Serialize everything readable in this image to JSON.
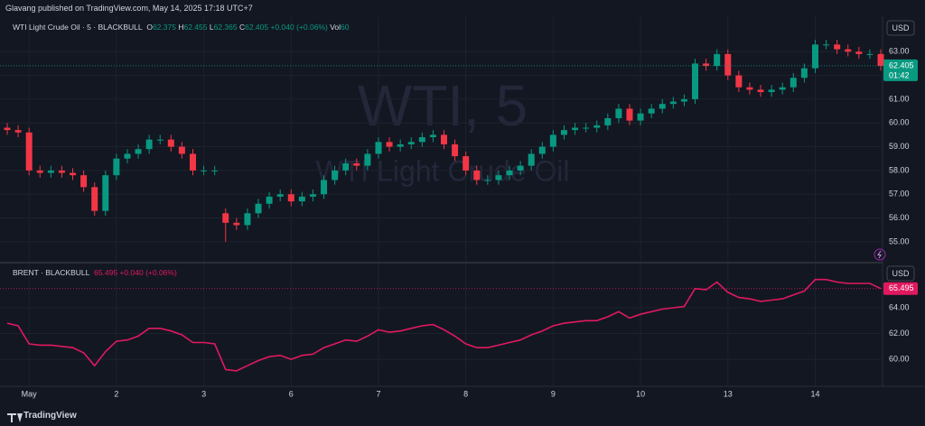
{
  "header": {
    "published": "Glavang published on TradingView.com, May 14, 2025 17:18 UTC+7"
  },
  "footer": {
    "brand": "TradingView"
  },
  "chart_data": [
    {
      "type": "candlestick",
      "symbol": "WTI Light Crude Oil · 5 · BLACKBULL",
      "legend": {
        "o_label": "O",
        "open": 62.375,
        "h_label": "H",
        "high": 62.455,
        "l_label": "L",
        "low": 62.365,
        "c_label": "C",
        "close": 62.405,
        "change": "+0.040 (+0.06%)",
        "vol_label": "Vol",
        "volume": 60
      },
      "watermark": {
        "line1": "WTI, 5",
        "line2": "WTI Light Crude Oil"
      },
      "currency": "USD",
      "last_price": 62.405,
      "countdown": "01:42",
      "up_color": "#089981",
      "down_color": "#f23645",
      "xlim": [
        0,
        80
      ],
      "ylim": [
        54.16,
        64.49
      ],
      "yticks": [
        {
          "value": 55,
          "label": "55.00"
        },
        {
          "value": 56,
          "label": "56.00"
        },
        {
          "value": 57,
          "label": "57.00"
        },
        {
          "value": 58,
          "label": "58.00"
        },
        {
          "value": 59,
          "label": "59.00"
        },
        {
          "value": 60,
          "label": "60.00"
        },
        {
          "value": 61,
          "label": "61.00"
        },
        {
          "value": 62,
          "label": "62.00"
        },
        {
          "value": 63,
          "label": "63.00"
        }
      ],
      "grid": true,
      "open": [
        59.8,
        59.7,
        59.6,
        58.0,
        57.9,
        58.0,
        57.9,
        57.8,
        57.3,
        56.3,
        57.8,
        58.5,
        58.7,
        58.9,
        59.3,
        59.3,
        59.0,
        58.7,
        58.0,
        58.0,
        56.2,
        55.8,
        55.7,
        56.2,
        56.6,
        56.9,
        57.0,
        56.7,
        56.9,
        57.0,
        57.6,
        58.0,
        58.3,
        58.2,
        58.7,
        59.2,
        59.0,
        59.1,
        59.2,
        59.4,
        59.5,
        59.1,
        58.6,
        58.0,
        57.6,
        57.6,
        57.8,
        58.0,
        58.2,
        58.7,
        59.0,
        59.5,
        59.7,
        59.8,
        59.8,
        59.9,
        60.2,
        60.6,
        60.1,
        60.4,
        60.6,
        60.8,
        60.9,
        61.0,
        62.5,
        62.4,
        62.9,
        62.0,
        61.5,
        61.4,
        61.3,
        61.4,
        61.5,
        61.9,
        62.3,
        63.3,
        63.3,
        63.1,
        63.0,
        62.9,
        62.9
      ],
      "high": [
        60.0,
        59.9,
        59.8,
        58.2,
        58.2,
        58.2,
        58.1,
        58.0,
        57.5,
        58.0,
        58.7,
        58.9,
        59.1,
        59.5,
        59.5,
        59.5,
        59.2,
        58.9,
        58.2,
        58.2,
        56.4,
        56.0,
        56.4,
        56.8,
        57.1,
        57.2,
        57.2,
        57.1,
        57.2,
        57.8,
        58.2,
        58.5,
        58.5,
        58.9,
        59.4,
        59.4,
        59.3,
        59.4,
        59.6,
        59.7,
        59.7,
        59.3,
        58.8,
        58.2,
        57.8,
        58.0,
        58.2,
        58.4,
        58.9,
        59.2,
        59.7,
        59.9,
        60.0,
        60.0,
        60.1,
        60.4,
        60.8,
        60.8,
        60.6,
        60.8,
        61.0,
        61.1,
        61.2,
        62.7,
        62.7,
        63.1,
        63.1,
        62.2,
        61.7,
        61.6,
        61.6,
        61.7,
        62.1,
        62.5,
        63.5,
        63.5,
        63.5,
        63.3,
        63.2,
        63.1,
        63.1
      ],
      "low": [
        59.5,
        59.4,
        57.8,
        57.7,
        57.7,
        57.7,
        57.6,
        57.1,
        56.1,
        56.1,
        57.6,
        58.3,
        58.5,
        58.7,
        59.1,
        58.8,
        58.5,
        57.8,
        57.8,
        57.8,
        55.0,
        55.5,
        55.5,
        56.0,
        56.4,
        56.7,
        56.5,
        56.5,
        56.7,
        56.8,
        57.4,
        57.8,
        58.0,
        58.0,
        58.5,
        58.8,
        58.8,
        58.9,
        59.0,
        59.2,
        58.9,
        58.4,
        57.8,
        57.4,
        57.4,
        57.4,
        57.6,
        57.8,
        58.0,
        58.5,
        58.8,
        59.3,
        59.5,
        59.6,
        59.6,
        59.7,
        60.0,
        59.9,
        59.9,
        60.2,
        60.4,
        60.6,
        60.7,
        60.8,
        62.2,
        62.2,
        61.8,
        61.3,
        61.2,
        61.1,
        61.1,
        61.2,
        61.3,
        61.7,
        62.1,
        63.1,
        62.9,
        62.8,
        62.7,
        62.7,
        62.2
      ],
      "close": [
        59.7,
        59.6,
        58.0,
        57.9,
        58.0,
        57.9,
        57.8,
        57.3,
        56.3,
        57.8,
        58.5,
        58.7,
        58.9,
        59.3,
        59.3,
        59.0,
        58.7,
        58.0,
        58.0,
        58.0,
        55.8,
        55.7,
        56.2,
        56.6,
        56.9,
        57.0,
        56.7,
        56.9,
        57.0,
        57.6,
        58.0,
        58.3,
        58.2,
        58.7,
        59.2,
        59.0,
        59.1,
        59.2,
        59.4,
        59.5,
        59.1,
        58.6,
        58.0,
        57.6,
        57.6,
        57.8,
        58.0,
        58.2,
        58.7,
        59.0,
        59.5,
        59.7,
        59.8,
        59.8,
        59.9,
        60.2,
        60.6,
        60.1,
        60.4,
        60.6,
        60.8,
        60.9,
        61.0,
        62.5,
        62.4,
        62.9,
        62.0,
        61.5,
        61.4,
        61.3,
        61.4,
        61.5,
        61.9,
        62.3,
        63.3,
        63.3,
        63.1,
        63.0,
        62.9,
        62.9,
        62.4
      ]
    },
    {
      "type": "line",
      "symbol": "BRENT · BLACKBULL",
      "legend": {
        "last": 65.495,
        "change": "+0.040 (+0.06%)"
      },
      "currency": "USD",
      "last_price": 65.495,
      "color": "#e0195f",
      "xlim": [
        0,
        80
      ],
      "xticks": [
        {
          "value": 2,
          "label": "May"
        },
        {
          "value": 10,
          "label": "2"
        },
        {
          "value": 18,
          "label": "3"
        },
        {
          "value": 26,
          "label": "6"
        },
        {
          "value": 34,
          "label": "7"
        },
        {
          "value": 42,
          "label": "8"
        },
        {
          "value": 50,
          "label": "9"
        },
        {
          "value": 58,
          "label": "10"
        },
        {
          "value": 66,
          "label": "13"
        },
        {
          "value": 74,
          "label": "14"
        }
      ],
      "ylim": [
        57.9,
        67.44
      ],
      "yticks": [
        {
          "value": 60,
          "label": "60.00"
        },
        {
          "value": 62,
          "label": "62.00"
        },
        {
          "value": 64,
          "label": "64.00"
        }
      ],
      "grid": true,
      "values": [
        62.8,
        62.6,
        61.2,
        61.1,
        61.1,
        61.0,
        60.9,
        60.5,
        59.5,
        60.6,
        61.4,
        61.5,
        61.8,
        62.4,
        62.4,
        62.2,
        61.9,
        61.3,
        61.3,
        61.2,
        59.2,
        59.1,
        59.5,
        59.9,
        60.2,
        60.3,
        60.0,
        60.3,
        60.4,
        60.9,
        61.2,
        61.5,
        61.4,
        61.8,
        62.3,
        62.1,
        62.2,
        62.4,
        62.6,
        62.7,
        62.3,
        61.8,
        61.2,
        60.9,
        60.9,
        61.1,
        61.3,
        61.5,
        61.9,
        62.2,
        62.6,
        62.8,
        62.9,
        63.0,
        63.0,
        63.3,
        63.7,
        63.2,
        63.5,
        63.7,
        63.9,
        64.0,
        64.1,
        65.5,
        65.4,
        66.0,
        65.2,
        64.8,
        64.7,
        64.5,
        64.6,
        64.7,
        65.0,
        65.3,
        66.2,
        66.2,
        66.0,
        65.9,
        65.9,
        65.9,
        65.5
      ]
    }
  ]
}
